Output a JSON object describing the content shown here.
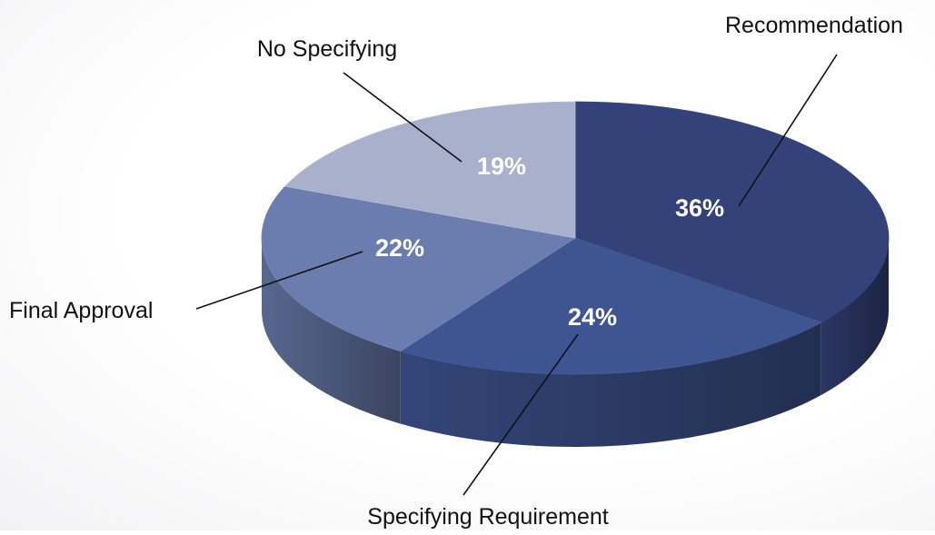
{
  "chart_data": {
    "type": "pie",
    "style": "3d",
    "title": "",
    "slices": [
      {
        "name": "Recommendation",
        "value": 36,
        "label": "36%",
        "color": "#34427a"
      },
      {
        "name": "Specifying Requirement",
        "value": 24,
        "label": "24%",
        "color": "#3f5592"
      },
      {
        "name": "Final Approval",
        "value": 22,
        "label": "22%",
        "color": "#6b7dae"
      },
      {
        "name": "No Specifying",
        "value": 19,
        "label": "19%",
        "color": "#a8b0cc"
      }
    ]
  }
}
